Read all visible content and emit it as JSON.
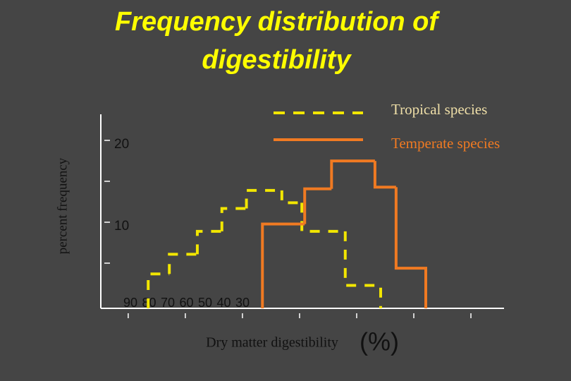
{
  "chart_data": {
    "type": "step",
    "title": [
      "Frequency distribution  of",
      "digestibility"
    ],
    "y_label": "percent frequency",
    "x_label": "Dry matter digestibility",
    "x_unit": "(%)",
    "xlim": [
      92.7,
      24.2
    ],
    "xticks": [
      90,
      80,
      70,
      60,
      50,
      40,
      30
    ],
    "ylim": [
      0,
      23.7
    ],
    "yticks": [
      10,
      20
    ],
    "minor_yticks": [
      5,
      15
    ],
    "series": [
      {
        "name": "Tropical species",
        "color": "#f2e600",
        "text_color": "#efdfa8",
        "dashed": true,
        "bins": [
          86.5,
          82.8,
          77.9,
          73.6,
          69.3,
          63.1,
          59.6,
          52.0,
          45.8
        ],
        "values": [
          4.2,
          6.6,
          9.4,
          12.2,
          14.4,
          12.9,
          9.4,
          2.8
        ]
      },
      {
        "name": "Temperate species",
        "color": "#f07a22",
        "text_color": "#f07a22",
        "dashed": false,
        "bins": [
          66.5,
          59.1,
          54.4,
          46.8,
          43.1,
          37.9
        ],
        "values": [
          10.3,
          14.6,
          18.0,
          14.8,
          4.9
        ]
      }
    ]
  }
}
